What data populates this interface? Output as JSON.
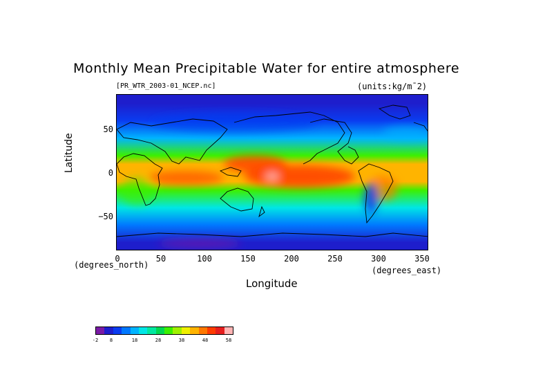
{
  "title": "Monthly Mean Precipitable Water for entire atmosphere",
  "file_label": "[PR_WTR_2003-01_NCEP.nc]",
  "units_label": "(units:kg/m¯2)",
  "x_axis": {
    "label": "Longitude",
    "unit": "(degrees_east)",
    "ticks": [
      "0",
      "50",
      "100",
      "150",
      "200",
      "250",
      "300",
      "350"
    ],
    "range": [
      0,
      360
    ]
  },
  "y_axis": {
    "label": "Latitude",
    "unit": "(degrees_north)",
    "ticks": [
      "50",
      "0",
      "−50"
    ],
    "range": [
      -90,
      90
    ]
  },
  "colorbar": {
    "ticks": [
      "-2",
      "8",
      "18",
      "28",
      "38",
      "48",
      "58"
    ],
    "colors": [
      "#7a1aa6",
      "#1e1ecc",
      "#0a3cf0",
      "#0078ff",
      "#00b4ff",
      "#00e6e6",
      "#00e8a0",
      "#00d850",
      "#3cf000",
      "#a0f000",
      "#f0f000",
      "#ffb400",
      "#ff7800",
      "#ff3c00",
      "#e61e1e",
      "#ffb4b4"
    ]
  },
  "chart_data": {
    "type": "heatmap",
    "title": "Monthly Mean Precipitable Water for entire atmosphere",
    "variable": "Precipitable Water",
    "units": "kg/m¯2",
    "xlabel": "Longitude",
    "ylabel": "Latitude",
    "xlim": [
      0,
      360
    ],
    "ylim": [
      -90,
      90
    ],
    "value_range": [
      -2,
      62
    ],
    "zonal_profile": {
      "latitude": [
        80,
        60,
        40,
        20,
        10,
        0,
        -10,
        -20,
        -40,
        -60,
        -80
      ],
      "approx_value": [
        4,
        8,
        14,
        30,
        42,
        45,
        42,
        32,
        20,
        10,
        3
      ]
    }
  }
}
